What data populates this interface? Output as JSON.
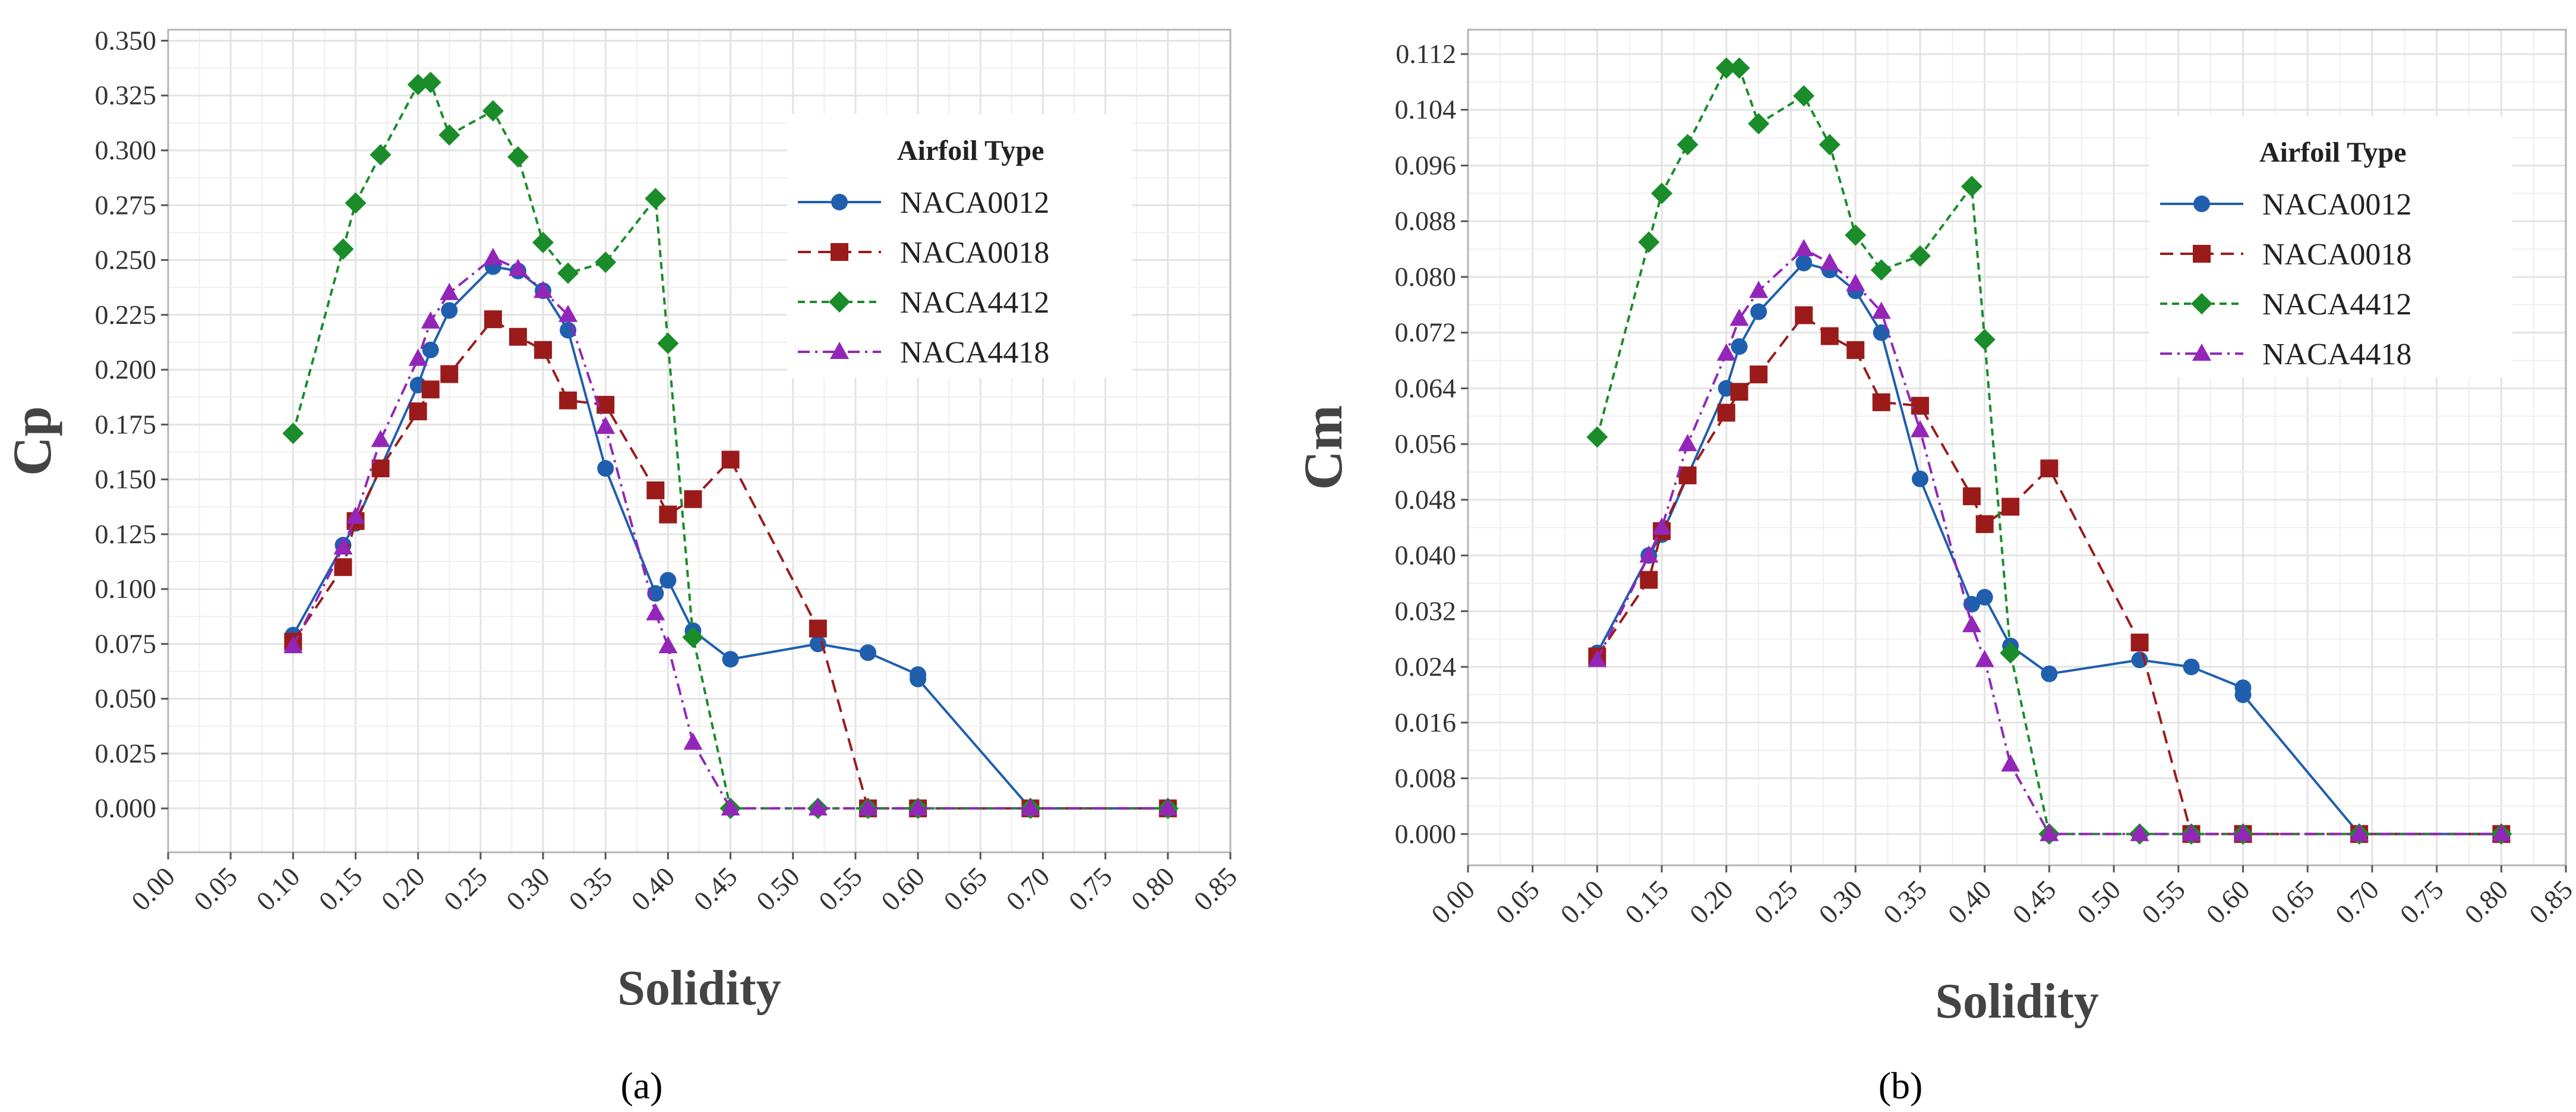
{
  "chart_data": [
    {
      "type": "line",
      "title": "",
      "caption": "(a)",
      "caption_letter": "a",
      "xlabel": "Solidity",
      "ylabel": "Cp",
      "xlim": [
        0.0,
        0.85
      ],
      "ylim": [
        -0.02,
        0.355
      ],
      "x_ticks": [
        0.0,
        0.05,
        0.1,
        0.15,
        0.2,
        0.25,
        0.3,
        0.35,
        0.4,
        0.45,
        0.5,
        0.55,
        0.6,
        0.65,
        0.7,
        0.75,
        0.8,
        0.85
      ],
      "x_tick_labels": [
        "0.00",
        "0.05",
        "0.10",
        "0.15",
        "0.20",
        "0.25",
        "0.30",
        "0.35",
        "0.40",
        "0.45",
        "0.50",
        "0.55",
        "0.60",
        "0.65",
        "0.70",
        "0.75",
        "0.80",
        "0.85"
      ],
      "y_ticks": [
        0.0,
        0.025,
        0.05,
        0.075,
        0.1,
        0.125,
        0.15,
        0.175,
        0.2,
        0.225,
        0.25,
        0.275,
        0.3,
        0.325,
        0.35
      ],
      "y_tick_labels": [
        "0.000",
        "0.025",
        "0.050",
        "0.075",
        "0.100",
        "0.125",
        "0.150",
        "0.175",
        "0.200",
        "0.225",
        "0.250",
        "0.275",
        "0.300",
        "0.325",
        "0.350"
      ],
      "grid": true,
      "legend": {
        "title": "Airfoil Type",
        "position": "top-right"
      },
      "series": [
        {
          "name": "NACA0012",
          "color": "#1f5fae",
          "marker": "circle",
          "dash": "solid",
          "x": [
            0.1,
            0.14,
            0.15,
            0.2,
            0.21,
            0.225,
            0.26,
            0.28,
            0.3,
            0.32,
            0.35,
            0.39,
            0.4,
            0.42,
            0.45,
            0.52,
            0.56,
            0.6,
            0.6,
            0.69,
            0.8
          ],
          "y": [
            0.079,
            0.12,
            0.13,
            0.193,
            0.209,
            0.227,
            0.247,
            0.245,
            0.236,
            0.218,
            0.155,
            0.098,
            0.104,
            0.081,
            0.068,
            0.075,
            0.071,
            0.061,
            0.059,
            0.0,
            0.0
          ]
        },
        {
          "name": "NACA0018",
          "color": "#9b1b1b",
          "marker": "square",
          "dash": "longdash",
          "x": [
            0.1,
            0.14,
            0.15,
            0.17,
            0.2,
            0.21,
            0.225,
            0.26,
            0.28,
            0.3,
            0.32,
            0.35,
            0.39,
            0.4,
            0.42,
            0.45,
            0.52,
            0.56,
            0.6,
            0.69,
            0.8
          ],
          "y": [
            0.076,
            0.11,
            0.131,
            0.155,
            0.181,
            0.191,
            0.198,
            0.223,
            0.215,
            0.209,
            0.186,
            0.184,
            0.145,
            0.134,
            0.141,
            0.159,
            0.082,
            0.0,
            0.0,
            0.0,
            0.0
          ]
        },
        {
          "name": "NACA4412",
          "color": "#1a8c2a",
          "marker": "diamond",
          "dash": "dash",
          "x": [
            0.1,
            0.14,
            0.15,
            0.17,
            0.2,
            0.21,
            0.225,
            0.26,
            0.28,
            0.3,
            0.32,
            0.35,
            0.39,
            0.4,
            0.42,
            0.45,
            0.52,
            0.56,
            0.6,
            0.69,
            0.8
          ],
          "y": [
            0.171,
            0.255,
            0.276,
            0.298,
            0.33,
            0.331,
            0.307,
            0.318,
            0.297,
            0.258,
            0.244,
            0.249,
            0.278,
            0.212,
            0.078,
            0.0,
            0.0,
            0.0,
            0.0,
            0.0,
            0.0
          ]
        },
        {
          "name": "NACA4418",
          "color": "#9326b8",
          "marker": "triangle",
          "dash": "dashdot",
          "x": [
            0.1,
            0.14,
            0.15,
            0.17,
            0.2,
            0.21,
            0.225,
            0.26,
            0.28,
            0.3,
            0.32,
            0.35,
            0.39,
            0.4,
            0.42,
            0.45,
            0.52,
            0.56,
            0.6,
            0.69,
            0.8
          ],
          "y": [
            0.074,
            0.119,
            0.133,
            0.168,
            0.205,
            0.222,
            0.235,
            0.251,
            0.246,
            0.236,
            0.225,
            0.174,
            0.089,
            0.074,
            0.03,
            0.0,
            0.0,
            0.0,
            0.0,
            0.0,
            0.0
          ]
        }
      ]
    },
    {
      "type": "line",
      "title": "",
      "caption": "(b)",
      "caption_letter": "b",
      "xlabel": "Solidity",
      "ylabel": "Cm",
      "xlim": [
        0.0,
        0.85
      ],
      "ylim": [
        -0.0045,
        0.1155
      ],
      "x_ticks": [
        0.0,
        0.05,
        0.1,
        0.15,
        0.2,
        0.25,
        0.3,
        0.35,
        0.4,
        0.45,
        0.5,
        0.55,
        0.6,
        0.65,
        0.7,
        0.75,
        0.8,
        0.85
      ],
      "x_tick_labels": [
        "0.00",
        "0.05",
        "0.10",
        "0.15",
        "0.20",
        "0.25",
        "0.30",
        "0.35",
        "0.40",
        "0.45",
        "0.50",
        "0.55",
        "0.60",
        "0.65",
        "0.70",
        "0.75",
        "0.80",
        "0.85"
      ],
      "y_ticks": [
        0.0,
        0.008,
        0.016,
        0.024,
        0.032,
        0.04,
        0.048,
        0.056,
        0.064,
        0.072,
        0.08,
        0.088,
        0.096,
        0.104,
        0.112
      ],
      "y_tick_labels": [
        "0.000",
        "0.008",
        "0.016",
        "0.024",
        "0.032",
        "0.040",
        "0.048",
        "0.056",
        "0.064",
        "0.072",
        "0.080",
        "0.088",
        "0.096",
        "0.104",
        "0.112"
      ],
      "grid": true,
      "legend": {
        "title": "Airfoil Type",
        "position": "top-right"
      },
      "series": [
        {
          "name": "NACA0012",
          "color": "#1f5fae",
          "marker": "circle",
          "dash": "solid",
          "x": [
            0.1,
            0.14,
            0.15,
            0.2,
            0.21,
            0.225,
            0.26,
            0.28,
            0.3,
            0.32,
            0.35,
            0.39,
            0.4,
            0.42,
            0.45,
            0.52,
            0.56,
            0.6,
            0.6,
            0.69,
            0.8
          ],
          "y": [
            0.026,
            0.04,
            0.043,
            0.064,
            0.07,
            0.075,
            0.082,
            0.081,
            0.078,
            0.072,
            0.051,
            0.033,
            0.034,
            0.027,
            0.023,
            0.025,
            0.024,
            0.021,
            0.02,
            0.0,
            0.0
          ]
        },
        {
          "name": "NACA0018",
          "color": "#9b1b1b",
          "marker": "square",
          "dash": "longdash",
          "x": [
            0.1,
            0.14,
            0.15,
            0.17,
            0.2,
            0.21,
            0.225,
            0.26,
            0.28,
            0.3,
            0.32,
            0.35,
            0.39,
            0.4,
            0.42,
            0.45,
            0.52,
            0.56,
            0.6,
            0.69,
            0.8
          ],
          "y": [
            0.0255,
            0.0365,
            0.0435,
            0.0515,
            0.0605,
            0.0635,
            0.066,
            0.0745,
            0.0715,
            0.0695,
            0.062,
            0.0615,
            0.0485,
            0.0445,
            0.047,
            0.0525,
            0.0275,
            0.0,
            0.0,
            0.0,
            0.0
          ]
        },
        {
          "name": "NACA4412",
          "color": "#1a8c2a",
          "marker": "diamond",
          "dash": "dash",
          "x": [
            0.1,
            0.14,
            0.15,
            0.17,
            0.2,
            0.21,
            0.225,
            0.26,
            0.28,
            0.3,
            0.32,
            0.35,
            0.39,
            0.4,
            0.42,
            0.45,
            0.52,
            0.56,
            0.6,
            0.69,
            0.8
          ],
          "y": [
            0.057,
            0.085,
            0.092,
            0.099,
            0.11,
            0.11,
            0.102,
            0.106,
            0.099,
            0.086,
            0.081,
            0.083,
            0.093,
            0.071,
            0.026,
            0.0,
            0.0,
            0.0,
            0.0,
            0.0,
            0.0
          ]
        },
        {
          "name": "NACA4418",
          "color": "#9326b8",
          "marker": "triangle",
          "dash": "dashdot",
          "x": [
            0.1,
            0.14,
            0.15,
            0.17,
            0.2,
            0.21,
            0.225,
            0.26,
            0.28,
            0.3,
            0.32,
            0.35,
            0.39,
            0.4,
            0.42,
            0.45,
            0.52,
            0.56,
            0.6,
            0.69,
            0.8
          ],
          "y": [
            0.025,
            0.04,
            0.044,
            0.056,
            0.069,
            0.074,
            0.078,
            0.084,
            0.082,
            0.079,
            0.075,
            0.058,
            0.03,
            0.025,
            0.01,
            0.0,
            0.0,
            0.0,
            0.0,
            0.0,
            0.0
          ]
        }
      ]
    }
  ]
}
